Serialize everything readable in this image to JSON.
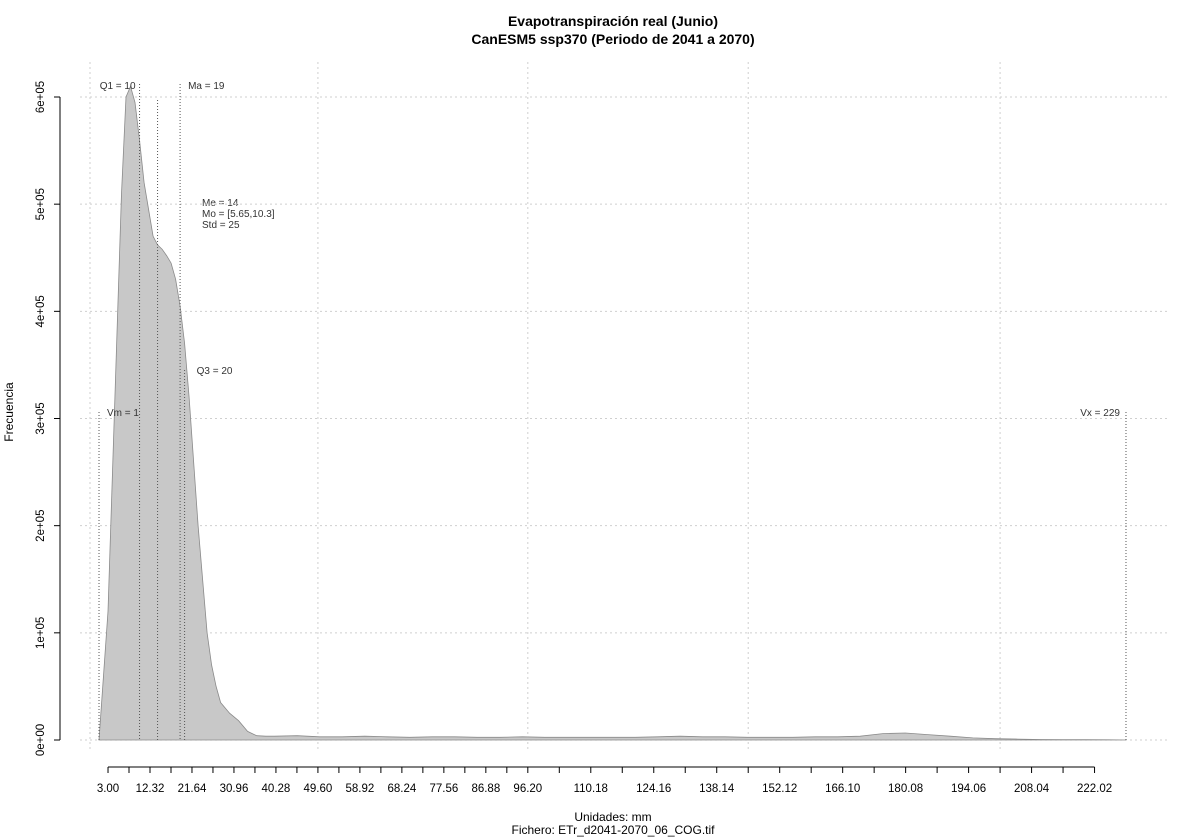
{
  "chart_data": {
    "type": "area",
    "title": "Evapotranspiración real (Junio)",
    "subtitle": "CanESM5 ssp370 (Periodo de 2041 a 2070)",
    "xlabel": "Unidades: mm",
    "ylabel": "Frecuencia",
    "footer": "Fichero: ETr_d2041-2070_06_COG.tif",
    "xlim": [
      -1,
      233
    ],
    "ylim": [
      0,
      620000
    ],
    "x_ticks": [
      3,
      7.66,
      12.32,
      16.98,
      21.64,
      26.3,
      30.96,
      35.62,
      40.28,
      44.94,
      49.6,
      54.26,
      58.92,
      63.58,
      68.24,
      72.9,
      77.56,
      82.22,
      86.88,
      91.54,
      96.2,
      103.19,
      110.18,
      117.17,
      124.16,
      131.15,
      138.14,
      145.13,
      152.12,
      159.11,
      166.1,
      173.09,
      180.08,
      187.07,
      194.06,
      201.05,
      208.04,
      215.03,
      222.02
    ],
    "x_tick_labels": [
      "3.00",
      "12.32",
      "21.64",
      "30.96",
      "40.28",
      "49.60",
      "58.92",
      "68.24",
      "77.56",
      "86.88",
      "96.20",
      "110.18",
      "124.16",
      "138.14",
      "152.12",
      "166.10",
      "180.08",
      "194.06",
      "208.04",
      "222.02"
    ],
    "x_labeled_values": [
      3,
      12.32,
      21.64,
      30.96,
      40.28,
      49.6,
      58.92,
      68.24,
      77.56,
      86.88,
      96.2,
      110.18,
      124.16,
      138.14,
      152.12,
      166.1,
      180.08,
      194.06,
      208.04,
      222.02
    ],
    "y_ticks": [
      0,
      100000,
      200000,
      300000,
      400000,
      500000,
      600000
    ],
    "y_tick_labels": [
      "0e+00",
      "1e+05",
      "2e+05",
      "3e+05",
      "4e+05",
      "5e+05",
      "6e+05"
    ],
    "grid_x": [
      -1,
      49.6,
      96.2,
      145.13,
      201.05
    ],
    "grid_y": [
      0,
      100000,
      200000,
      300000,
      400000,
      500000,
      600000
    ],
    "grid": true,
    "series": [
      {
        "color": "#c8c8c8",
        "x": [
          1,
          3,
          5,
          6,
          7,
          8,
          9,
          10,
          11,
          12,
          13,
          14,
          15,
          16,
          17,
          18,
          19,
          20,
          21,
          22,
          23,
          24,
          25,
          26,
          27,
          28,
          30,
          32,
          34,
          36,
          38,
          40,
          45,
          50,
          55,
          60,
          65,
          70,
          75,
          80,
          85,
          90,
          95,
          100,
          105,
          110,
          115,
          120,
          125,
          130,
          135,
          140,
          145,
          150,
          155,
          160,
          165,
          170,
          175,
          180,
          185,
          190,
          195,
          200,
          205,
          210,
          215,
          220,
          225,
          229
        ],
        "y": [
          0,
          120000,
          380000,
          510000,
          600000,
          610000,
          595000,
          560000,
          520000,
          495000,
          470000,
          462000,
          458000,
          452000,
          445000,
          430000,
          405000,
          370000,
          320000,
          260000,
          200000,
          150000,
          100000,
          70000,
          50000,
          35000,
          25000,
          18000,
          8000,
          4000,
          3500,
          3500,
          4000,
          3000,
          3000,
          3500,
          3000,
          2500,
          3000,
          3000,
          2500,
          2500,
          3000,
          2500,
          2500,
          2500,
          2500,
          2500,
          3000,
          3500,
          3000,
          3000,
          2500,
          2500,
          2500,
          3000,
          3000,
          3500,
          6000,
          6500,
          5000,
          3500,
          2000,
          1200,
          800,
          500,
          400,
          300,
          200,
          0
        ]
      }
    ],
    "vlines": [
      {
        "label": "Q1 = 10",
        "x": 10
      },
      {
        "label": "Ma = 19",
        "x": 19
      },
      {
        "label": "Q3 = 20",
        "x": 20
      },
      {
        "label": "Vm = 1",
        "x": 1
      },
      {
        "label": "Vx = 229",
        "x": 229
      },
      {
        "label": "",
        "x": 14
      }
    ],
    "stats": [
      "Me = 14",
      "Mo = [5.65,10.3]",
      "Std = 25"
    ]
  }
}
